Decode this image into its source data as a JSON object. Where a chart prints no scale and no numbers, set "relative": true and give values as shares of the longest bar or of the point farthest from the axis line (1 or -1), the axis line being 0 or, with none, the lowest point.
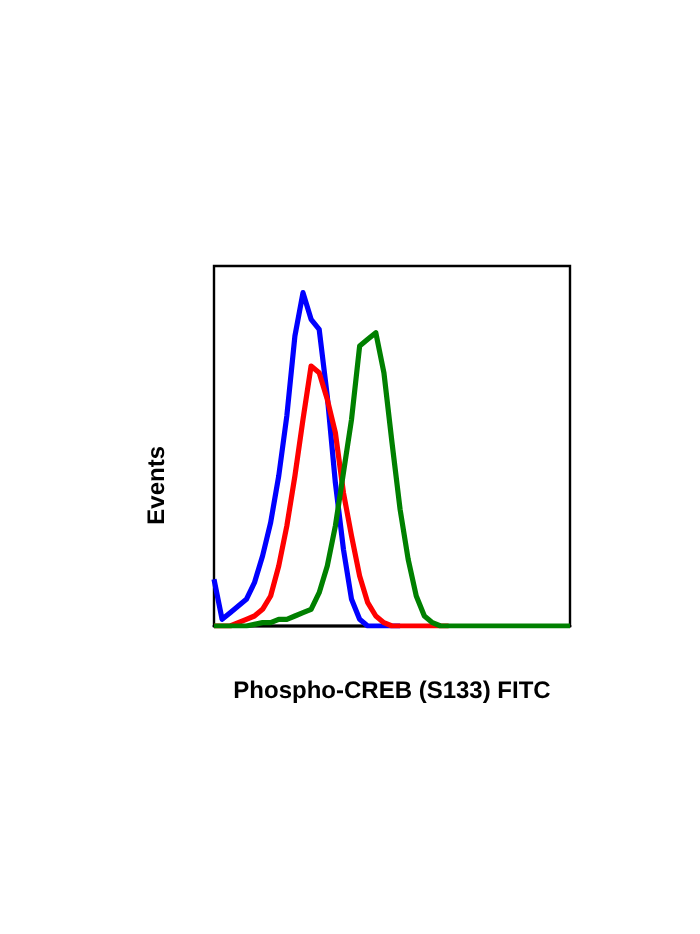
{
  "chart_data": {
    "type": "line",
    "relative": true,
    "xlabel": "Phospho-CREB (S133) FITC",
    "ylabel": "Events",
    "grid": false,
    "line_style": "solid",
    "categories": [
      null,
      null,
      null,
      null,
      null,
      null,
      null,
      null,
      null,
      null,
      null,
      null,
      null,
      null,
      null,
      null,
      null,
      null,
      null,
      null,
      null,
      null,
      null,
      null,
      null,
      null,
      null,
      null,
      null,
      null,
      null,
      null,
      null,
      null,
      null,
      null,
      null,
      null,
      null,
      null,
      null,
      null,
      null,
      null,
      null
    ],
    "series": [
      {
        "color": "#0000ff",
        "values": [
          0.14,
          0.02,
          0.04,
          0.06,
          0.08,
          0.13,
          0.21,
          0.31,
          0.45,
          0.63,
          0.87,
          1,
          0.92,
          0.89,
          0.69,
          0.43,
          0.23,
          0.08,
          0.02,
          0,
          0,
          0,
          0,
          0,
          null,
          null,
          null,
          null,
          null,
          null,
          null,
          null,
          null,
          null,
          null,
          null,
          null,
          null,
          null,
          null,
          null,
          null,
          null,
          null,
          null
        ]
      },
      {
        "color": "#ff0000",
        "values": [
          0,
          0,
          0,
          0.01,
          0.02,
          0.03,
          0.05,
          0.09,
          0.18,
          0.3,
          0.45,
          0.62,
          0.78,
          0.76,
          0.68,
          0.58,
          0.4,
          0.27,
          0.15,
          0.07,
          0.03,
          0.01,
          0,
          0,
          0,
          0,
          0,
          0,
          0,
          0,
          null,
          null,
          null,
          null,
          null,
          null,
          null,
          null,
          null,
          null,
          null,
          null,
          null,
          null,
          null
        ]
      },
      {
        "color": "#008000",
        "values": [
          0,
          0,
          0,
          0,
          0,
          0.005,
          0.01,
          0.01,
          0.02,
          0.02,
          0.03,
          0.04,
          0.05,
          0.1,
          0.18,
          0.3,
          0.46,
          0.62,
          0.84,
          0.86,
          0.88,
          0.76,
          0.55,
          0.35,
          0.2,
          0.09,
          0.03,
          0.01,
          0,
          0,
          0,
          0,
          0,
          0,
          0,
          0,
          0,
          0,
          0,
          0,
          0,
          0,
          0,
          0,
          0
        ]
      }
    ]
  }
}
